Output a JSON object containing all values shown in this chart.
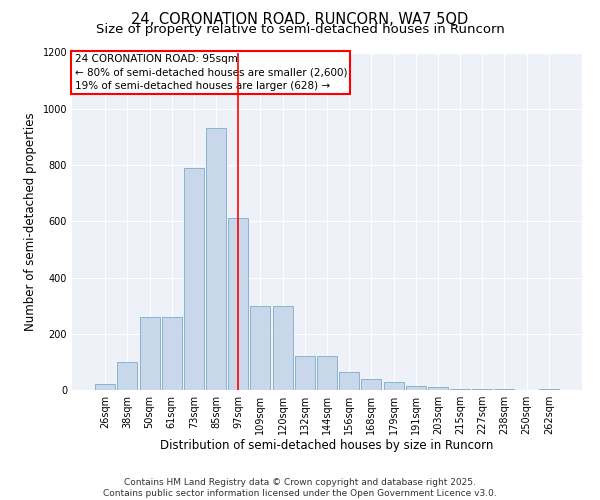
{
  "title": "24, CORONATION ROAD, RUNCORN, WA7 5QD",
  "subtitle": "Size of property relative to semi-detached houses in Runcorn",
  "xlabel": "Distribution of semi-detached houses by size in Runcorn",
  "ylabel": "Number of semi-detached properties",
  "bar_color": "#c8d8ea",
  "bar_edge_color": "#7aaec8",
  "background_color": "#eef2f8",
  "categories": [
    "26sqm",
    "38sqm",
    "50sqm",
    "61sqm",
    "73sqm",
    "85sqm",
    "97sqm",
    "109sqm",
    "120sqm",
    "132sqm",
    "144sqm",
    "156sqm",
    "168sqm",
    "179sqm",
    "191sqm",
    "203sqm",
    "215sqm",
    "227sqm",
    "238sqm",
    "250sqm",
    "262sqm"
  ],
  "values": [
    20,
    100,
    260,
    260,
    790,
    930,
    610,
    300,
    300,
    120,
    120,
    65,
    40,
    30,
    15,
    10,
    5,
    3,
    2,
    1,
    5
  ],
  "ylim": [
    0,
    1200
  ],
  "yticks": [
    0,
    200,
    400,
    600,
    800,
    1000,
    1200
  ],
  "red_line_index": 6,
  "annotation_title": "24 CORONATION ROAD: 95sqm",
  "annotation_line1": "← 80% of semi-detached houses are smaller (2,600)",
  "annotation_line2": "19% of semi-detached houses are larger (628) →",
  "footer_line1": "Contains HM Land Registry data © Crown copyright and database right 2025.",
  "footer_line2": "Contains public sector information licensed under the Open Government Licence v3.0.",
  "title_fontsize": 10.5,
  "subtitle_fontsize": 9.5,
  "axis_label_fontsize": 8.5,
  "tick_fontsize": 7,
  "annotation_fontsize": 7.5,
  "footer_fontsize": 6.5
}
